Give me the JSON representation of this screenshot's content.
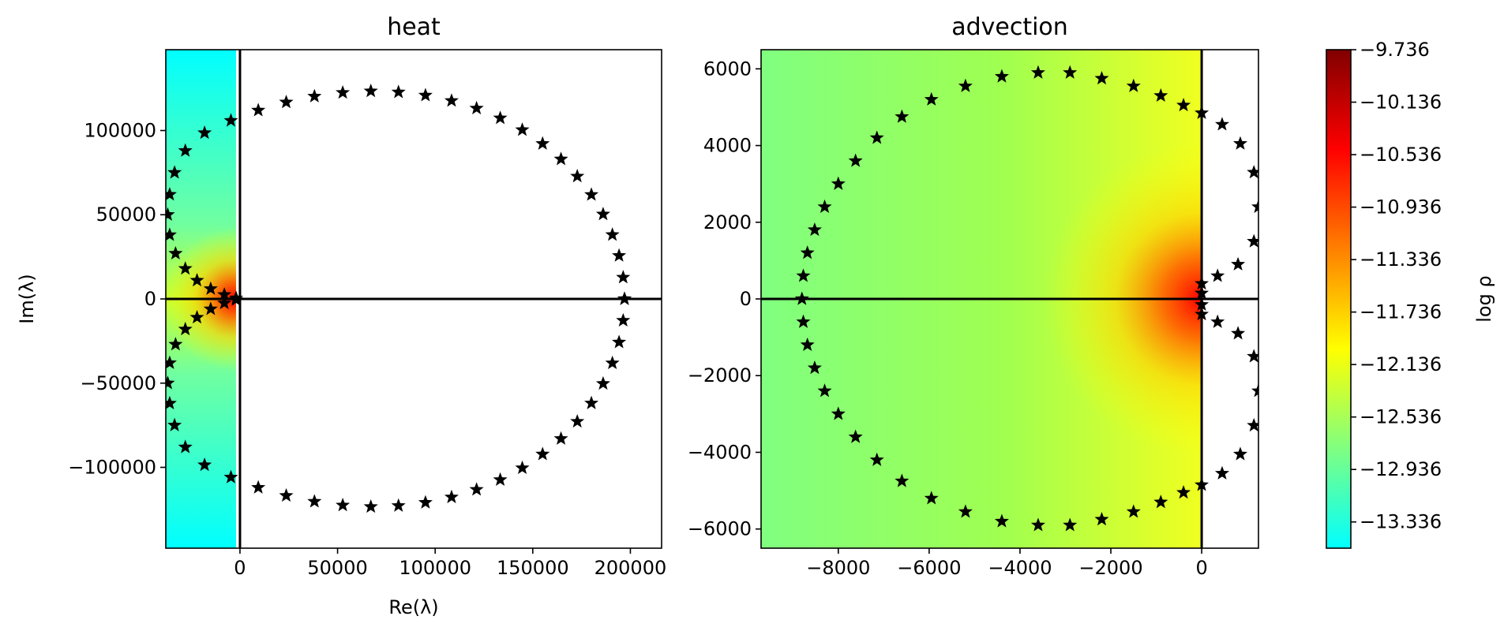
{
  "figure": {
    "colormap_stops": [
      "#00ffff",
      "#80ff80",
      "#ffff00",
      "#ff8000",
      "#ff0000",
      "#800000"
    ]
  },
  "chart_data": [
    {
      "type": "scatter",
      "title": "heat",
      "xlabel": "Re(λ)",
      "ylabel": "Im(λ)",
      "xlim": [
        -38000,
        216000
      ],
      "ylim": [
        -148000,
        148000
      ],
      "xticks": [
        {
          "value": 0,
          "label": "0"
        },
        {
          "value": 50000,
          "label": "50000"
        },
        {
          "value": 100000,
          "label": "100000"
        },
        {
          "value": 150000,
          "label": "150000"
        },
        {
          "value": 200000,
          "label": "200000"
        }
      ],
      "yticks": [
        {
          "value": 100000,
          "label": "100000"
        },
        {
          "value": 50000,
          "label": "50000"
        },
        {
          "value": 0,
          "label": "0"
        },
        {
          "value": -50000,
          "label": "−50000"
        },
        {
          "value": -100000,
          "label": "−100000"
        }
      ],
      "shaded_region": {
        "x": [
          -38000,
          -2000
        ],
        "y": [
          -148000,
          148000
        ]
      },
      "hot_spot": {
        "x": -3000,
        "y": 0
      },
      "marker": "star",
      "marker_color": "#000000",
      "series": [
        {
          "points": [
            [
              197000,
              0
            ],
            [
              196310,
              12800
            ],
            [
              194200,
              25700
            ],
            [
              190780,
              38100
            ],
            [
              186040,
              50300
            ],
            [
              180030,
              61900
            ],
            [
              172800,
              72800
            ],
            [
              164460,
              83000
            ],
            [
              155030,
              92200
            ],
            [
              144630,
              100400
            ],
            [
              133330,
              107400
            ],
            [
              121210,
              113200
            ],
            [
              108400,
              117700
            ],
            [
              95030,
              120900
            ],
            [
              81210,
              122800
            ],
            [
              67040,
              123400
            ],
            [
              52650,
              122500
            ],
            [
              38160,
              120300
            ],
            [
              23700,
              116800
            ],
            [
              9380,
              112000
            ],
            [
              -4640,
              105900
            ],
            [
              -18130,
              98600
            ],
            [
              -28000,
              88000
            ],
            [
              -33500,
              75000
            ],
            [
              -36000,
              62000
            ],
            [
              -37000,
              50000
            ],
            [
              -36000,
              38000
            ],
            [
              -33000,
              27000
            ],
            [
              -28000,
              18000
            ],
            [
              -22000,
              11000
            ],
            [
              -15000,
              6000
            ],
            [
              -8000,
              2500
            ],
            [
              -2000,
              500
            ],
            [
              197000,
              0
            ],
            [
              196310,
              -12800
            ],
            [
              194200,
              -25700
            ],
            [
              190780,
              -38100
            ],
            [
              186040,
              -50300
            ],
            [
              180030,
              -61900
            ],
            [
              172800,
              -72800
            ],
            [
              164460,
              -83000
            ],
            [
              155030,
              -92200
            ],
            [
              144630,
              -100400
            ],
            [
              133330,
              -107400
            ],
            [
              121210,
              -113200
            ],
            [
              108400,
              -117700
            ],
            [
              95030,
              -120900
            ],
            [
              81210,
              -122800
            ],
            [
              67040,
              -123400
            ],
            [
              52650,
              -122500
            ],
            [
              38160,
              -120300
            ],
            [
              23700,
              -116800
            ],
            [
              9380,
              -112000
            ],
            [
              -4640,
              -105900
            ],
            [
              -18130,
              -98600
            ],
            [
              -28000,
              -88000
            ],
            [
              -33500,
              -75000
            ],
            [
              -36000,
              -62000
            ],
            [
              -37000,
              -50000
            ],
            [
              -36000,
              -38000
            ],
            [
              -33000,
              -27000
            ],
            [
              -28000,
              -18000
            ],
            [
              -22000,
              -11000
            ],
            [
              -15000,
              -6000
            ],
            [
              -8000,
              -2500
            ],
            [
              -2000,
              -500
            ]
          ]
        }
      ]
    },
    {
      "type": "scatter",
      "title": "advection",
      "xlabel": "",
      "ylabel": "",
      "xlim": [
        -9700,
        1250
      ],
      "ylim": [
        -6500,
        6500
      ],
      "xticks": [
        {
          "value": -8000,
          "label": "−8000"
        },
        {
          "value": -6000,
          "label": "−6000"
        },
        {
          "value": -4000,
          "label": "−4000"
        },
        {
          "value": -2000,
          "label": "−2000"
        },
        {
          "value": 0,
          "label": "0"
        }
      ],
      "yticks": [
        {
          "value": 6000,
          "label": "6000"
        },
        {
          "value": 4000,
          "label": "4000"
        },
        {
          "value": 2000,
          "label": "2000"
        },
        {
          "value": 0,
          "label": "0"
        },
        {
          "value": -2000,
          "label": "−2000"
        },
        {
          "value": -4000,
          "label": "−4000"
        },
        {
          "value": -6000,
          "label": "−6000"
        }
      ],
      "shaded_region": {
        "x": [
          -9700,
          0
        ],
        "y": [
          -6500,
          6500
        ]
      },
      "hot_spot": {
        "x": 0,
        "y": 0
      },
      "marker": "star",
      "marker_color": "#000000",
      "series": [
        {
          "points": [
            [
              -8800,
              0
            ],
            [
              -8770,
              600
            ],
            [
              -8680,
              1200
            ],
            [
              -8520,
              1800
            ],
            [
              -8300,
              2400
            ],
            [
              -8000,
              3000
            ],
            [
              -7620,
              3600
            ],
            [
              -7150,
              4200
            ],
            [
              -6600,
              4750
            ],
            [
              -5950,
              5200
            ],
            [
              -5200,
              5550
            ],
            [
              -4400,
              5800
            ],
            [
              -3600,
              5900
            ],
            [
              -2900,
              5900
            ],
            [
              -2200,
              5750
            ],
            [
              -1500,
              5550
            ],
            [
              -900,
              5300
            ],
            [
              -400,
              5050
            ],
            [
              0,
              4850
            ],
            [
              450,
              4550
            ],
            [
              850,
              4050
            ],
            [
              1150,
              3300
            ],
            [
              1250,
              2400
            ],
            [
              1150,
              1500
            ],
            [
              800,
              900
            ],
            [
              350,
              600
            ],
            [
              0,
              400
            ],
            [
              0,
              150
            ],
            [
              -8770,
              -600
            ],
            [
              -8680,
              -1200
            ],
            [
              -8520,
              -1800
            ],
            [
              -8300,
              -2400
            ],
            [
              -8000,
              -3000
            ],
            [
              -7620,
              -3600
            ],
            [
              -7150,
              -4200
            ],
            [
              -6600,
              -4750
            ],
            [
              -5950,
              -5200
            ],
            [
              -5200,
              -5550
            ],
            [
              -4400,
              -5800
            ],
            [
              -3600,
              -5900
            ],
            [
              -2900,
              -5900
            ],
            [
              -2200,
              -5750
            ],
            [
              -1500,
              -5550
            ],
            [
              -900,
              -5300
            ],
            [
              -400,
              -5050
            ],
            [
              0,
              -4850
            ],
            [
              450,
              -4550
            ],
            [
              850,
              -4050
            ],
            [
              1150,
              -3300
            ],
            [
              1250,
              -2400
            ],
            [
              1150,
              -1500
            ],
            [
              800,
              -900
            ],
            [
              350,
              -600
            ],
            [
              0,
              -400
            ],
            [
              0,
              -150
            ]
          ]
        }
      ]
    },
    {
      "type": "heatmap",
      "colorbar_label": "log ρ",
      "range": [
        -13.536,
        -9.736
      ],
      "ticks": [
        {
          "value": -9.736,
          "label": "−9.736"
        },
        {
          "value": -10.136,
          "label": "−10.136"
        },
        {
          "value": -10.536,
          "label": "−10.536"
        },
        {
          "value": -10.936,
          "label": "−10.936"
        },
        {
          "value": -11.336,
          "label": "−11.336"
        },
        {
          "value": -11.736,
          "label": "−11.736"
        },
        {
          "value": -12.136,
          "label": "−12.136"
        },
        {
          "value": -12.536,
          "label": "−12.536"
        },
        {
          "value": -12.936,
          "label": "−12.936"
        },
        {
          "value": -13.336,
          "label": "−13.336"
        }
      ]
    }
  ]
}
